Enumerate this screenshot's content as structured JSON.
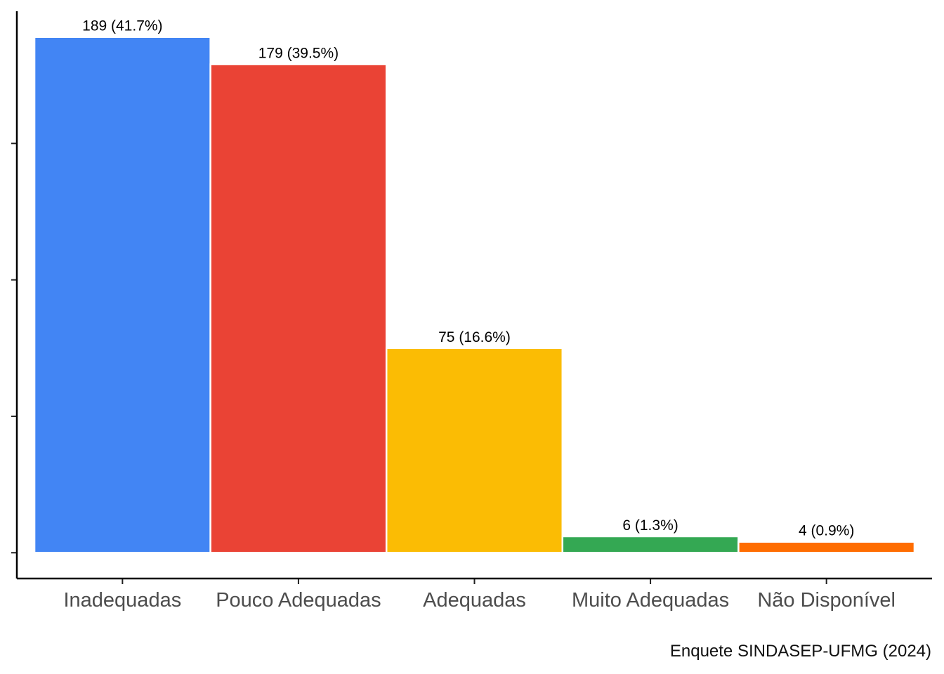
{
  "chart_data": {
    "type": "bar",
    "categories": [
      "Inadequadas",
      "Pouco Adequadas",
      "Adequadas",
      "Muito Adequadas",
      "Não Disponível"
    ],
    "values": [
      189,
      179,
      75,
      6,
      4
    ],
    "data_labels": [
      "189 (41.7%)",
      "179 (39.5%)",
      "75 (16.6%)",
      "6 (1.3%)",
      "4 (0.9%)"
    ],
    "colors": [
      "#4285F4",
      "#EA4335",
      "#FBBC04",
      "#34A853",
      "#FF6D01"
    ],
    "ylim": [
      -9.45,
      198.45
    ],
    "y_ticks_labeled": false,
    "grid": false,
    "legend": "none",
    "title": "",
    "xlabel": "",
    "ylabel": ""
  },
  "caption": "Enquete SINDASEP-UFMG (2024)"
}
